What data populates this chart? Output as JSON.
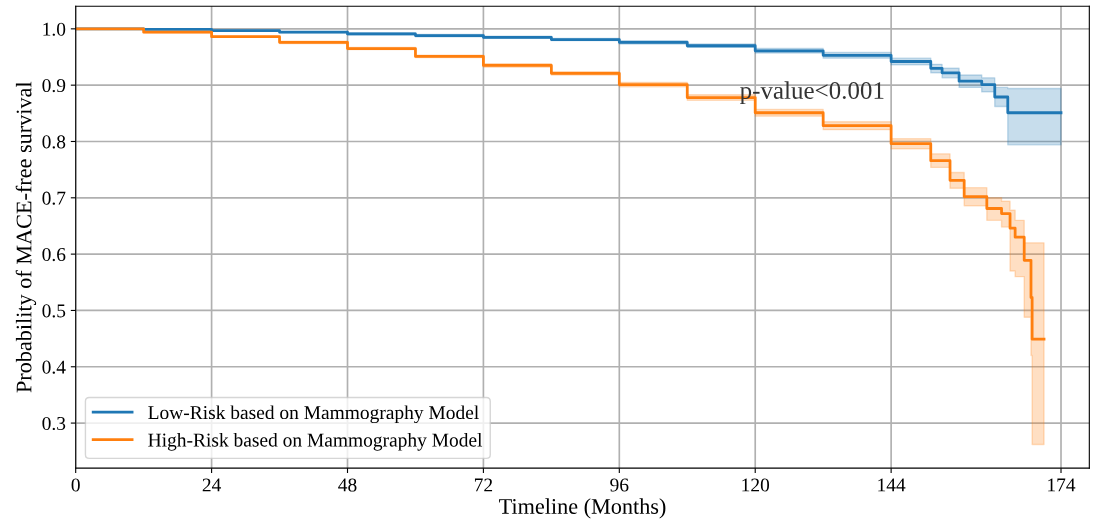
{
  "chart_data": {
    "type": "step",
    "xlabel": "Timeline (Months)",
    "ylabel": "Probability of MACE-free survival",
    "annotations": [
      "p-value<0.001"
    ],
    "xlim": [
      0,
      179
    ],
    "xticks": [
      0,
      24,
      48,
      72,
      96,
      120,
      144,
      174
    ],
    "ylim": [
      0.22,
      1.04
    ],
    "yticks": [
      {
        "value": 0.3,
        "label": "0.3"
      },
      {
        "value": 0.4,
        "label": "0.4"
      },
      {
        "value": 0.5,
        "label": "0.5"
      },
      {
        "value": 0.6,
        "label": "0.6"
      },
      {
        "value": 0.7,
        "label": "0.7"
      },
      {
        "value": 0.8,
        "label": "0.8"
      },
      {
        "value": 0.9,
        "label": "0.9"
      },
      {
        "value": 1.0,
        "label": "1.0"
      }
    ],
    "grid": true,
    "legend": "bottom left",
    "series": [
      {
        "name": "Low-Risk based on Mammography Model",
        "color": "#1f77b4",
        "x": [
          0,
          12,
          24,
          36,
          48,
          60,
          72,
          84,
          96,
          108,
          120,
          132,
          144,
          151,
          153,
          156,
          160,
          162.3,
          164.6,
          174
        ],
        "values": [
          1.0,
          0.999,
          0.997,
          0.994,
          0.991,
          0.988,
          0.985,
          0.981,
          0.976,
          0.97,
          0.961,
          0.953,
          0.942,
          0.93,
          0.922,
          0.907,
          0.901,
          0.879,
          0.851,
          0.851
        ],
        "lower": [
          1.0,
          0.998,
          0.996,
          0.993,
          0.989,
          0.986,
          0.983,
          0.979,
          0.973,
          0.967,
          0.957,
          0.948,
          0.936,
          0.922,
          0.913,
          0.896,
          0.888,
          0.862,
          0.794,
          0.794
        ],
        "upper": [
          1.0,
          1.0,
          0.998,
          0.995,
          0.993,
          0.99,
          0.987,
          0.983,
          0.979,
          0.973,
          0.965,
          0.958,
          0.948,
          0.937,
          0.93,
          0.918,
          0.913,
          0.896,
          0.894,
          0.894
        ]
      },
      {
        "name": "High-Risk based on Mammography Model",
        "color": "#ff7f0e",
        "x": [
          0,
          12,
          24,
          36,
          48,
          60,
          72,
          84,
          96,
          108,
          120,
          132,
          144,
          151,
          154.4,
          156.9,
          160.9,
          163.5,
          165,
          165.9,
          167.5,
          168.7,
          168.9,
          171
        ],
        "values": [
          1.0,
          0.994,
          0.986,
          0.976,
          0.965,
          0.951,
          0.935,
          0.921,
          0.901,
          0.878,
          0.851,
          0.828,
          0.796,
          0.766,
          0.731,
          0.702,
          0.681,
          0.672,
          0.646,
          0.63,
          0.589,
          0.523,
          0.449,
          0.449
        ],
        "lower": [
          1.0,
          0.993,
          0.985,
          0.974,
          0.963,
          0.949,
          0.932,
          0.918,
          0.897,
          0.873,
          0.845,
          0.821,
          0.787,
          0.754,
          0.717,
          0.686,
          0.66,
          0.648,
          0.57,
          0.56,
          0.488,
          0.42,
          0.262,
          0.262
        ],
        "upper": [
          1.0,
          0.995,
          0.987,
          0.978,
          0.967,
          0.953,
          0.938,
          0.924,
          0.905,
          0.883,
          0.857,
          0.835,
          0.805,
          0.778,
          0.745,
          0.718,
          0.7,
          0.694,
          0.678,
          0.66,
          0.62,
          0.62,
          0.62,
          0.62
        ]
      }
    ]
  }
}
